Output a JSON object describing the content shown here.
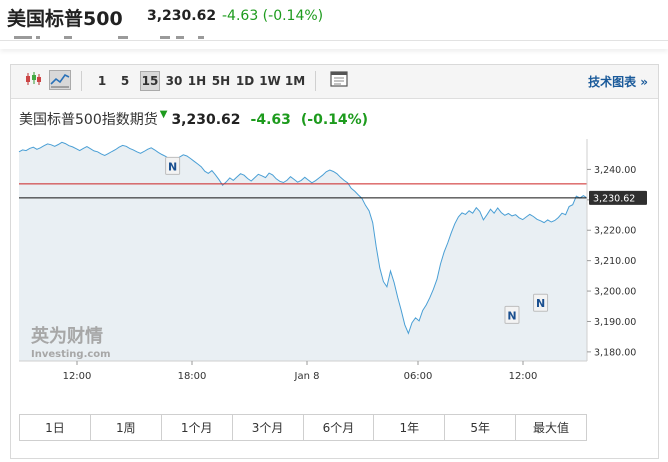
{
  "header": {
    "title": "美国标普500",
    "price": "3,230.62",
    "change": "-4.63 (-0.14%)"
  },
  "toolbar": {
    "chart_type_icons": [
      "candlestick-icon",
      "area-chart-icon"
    ],
    "selected_chart_type": "area-chart-icon",
    "intervals": [
      "1",
      "5",
      "15",
      "30",
      "1H",
      "5H",
      "1D",
      "1W",
      "1M"
    ],
    "selected_interval": "15",
    "settings_icon": "window-icon",
    "tech_chart_label": "技术图表 »"
  },
  "legend": {
    "name": "美国标普500指数期货",
    "direction": "down-arrow",
    "price": "3,230.62",
    "change": "-4.63",
    "percent": "(-0.14%)"
  },
  "colors": {
    "up_green": "#1d9b1d",
    "line_blue": "#4a9fd5",
    "area_fill": "#e9eff3",
    "ref_red": "#cc2222",
    "current_black": "#111111",
    "link_blue": "#1a5a9a"
  },
  "watermark": {
    "cn": "英为财情",
    "en": "Investing.com"
  },
  "chart_data": {
    "type": "area",
    "x_ticks": [
      "12:00",
      "18:00",
      "Jan 8",
      "06:00",
      "12:00"
    ],
    "y_ticks": [
      "3,240.00",
      "3,230.00",
      "3,220.00",
      "3,210.00",
      "3,200.00",
      "3,190.00",
      "3,180.00"
    ],
    "ylim": [
      3177,
      3250
    ],
    "current_value_label": "3,230.62",
    "current_value": 3230.62,
    "reference_value": 3235.25,
    "news_marker_label": "N",
    "news_markers": [
      {
        "x_index": 43,
        "y_value": 3241
      },
      {
        "x_index": 138,
        "y_value": 3192
      },
      {
        "x_index": 146,
        "y_value": 3196
      }
    ],
    "series": [
      {
        "values": [
          3245.8,
          3246.4,
          3246.2,
          3246.9,
          3247.3,
          3246.6,
          3247.1,
          3247.8,
          3248.4,
          3248.1,
          3247.6,
          3248.2,
          3248.9,
          3248.5,
          3247.8,
          3247.4,
          3246.8,
          3246.2,
          3246.9,
          3247.5,
          3246.8,
          3246.1,
          3245.8,
          3245.1,
          3244.6,
          3245.2,
          3245.9,
          3246.5,
          3247.3,
          3247.9,
          3247.6,
          3246.9,
          3246.4,
          3245.8,
          3245.3,
          3245.9,
          3246.6,
          3247.1,
          3246.4,
          3245.6,
          3244.9,
          3244.3,
          3243.6,
          3242.8,
          3243.4,
          3244.1,
          3244.8,
          3244.4,
          3243.6,
          3242.7,
          3241.8,
          3240.9,
          3239.4,
          3238.7,
          3239.6,
          3238.2,
          3236.6,
          3234.8,
          3235.9,
          3237.2,
          3236.4,
          3237.5,
          3238.6,
          3238.1,
          3237.0,
          3236.2,
          3237.3,
          3238.4,
          3237.9,
          3237.3,
          3238.8,
          3238.2,
          3236.9,
          3236.1,
          3235.7,
          3236.4,
          3237.6,
          3236.7,
          3235.8,
          3236.4,
          3237.4,
          3236.5,
          3235.6,
          3236.3,
          3237.2,
          3238.1,
          3239.2,
          3239.8,
          3239.3,
          3238.6,
          3237.4,
          3236.4,
          3235.6,
          3233.8,
          3232.8,
          3231.6,
          3230.5,
          3228.2,
          3226.4,
          3222.5,
          3214.6,
          3207.6,
          3203.1,
          3201.4,
          3206.6,
          3202.8,
          3197.9,
          3193.7,
          3188.9,
          3186.1,
          3189.6,
          3191.2,
          3190.2,
          3193.6,
          3195.4,
          3197.8,
          3200.6,
          3203.9,
          3208.9,
          3212.8,
          3215.8,
          3219.2,
          3222.1,
          3224.4,
          3225.7,
          3225.2,
          3226.4,
          3225.6,
          3227.4,
          3226.2,
          3223.4,
          3225.1,
          3226.9,
          3225.6,
          3227.3,
          3225.8,
          3224.9,
          3225.5,
          3224.7,
          3225.1,
          3224.1,
          3223.5,
          3224.4,
          3225.2,
          3224.5,
          3223.6,
          3223.1,
          3222.5,
          3223.4,
          3222.7,
          3223.2,
          3224.2,
          3225.6,
          3225.1,
          3227.8,
          3228.4,
          3231.2,
          3230.6,
          3231.4,
          3230.6
        ]
      }
    ]
  },
  "periods": [
    "1日",
    "1周",
    "1个月",
    "3个月",
    "6个月",
    "1年",
    "5年",
    "最大值"
  ]
}
